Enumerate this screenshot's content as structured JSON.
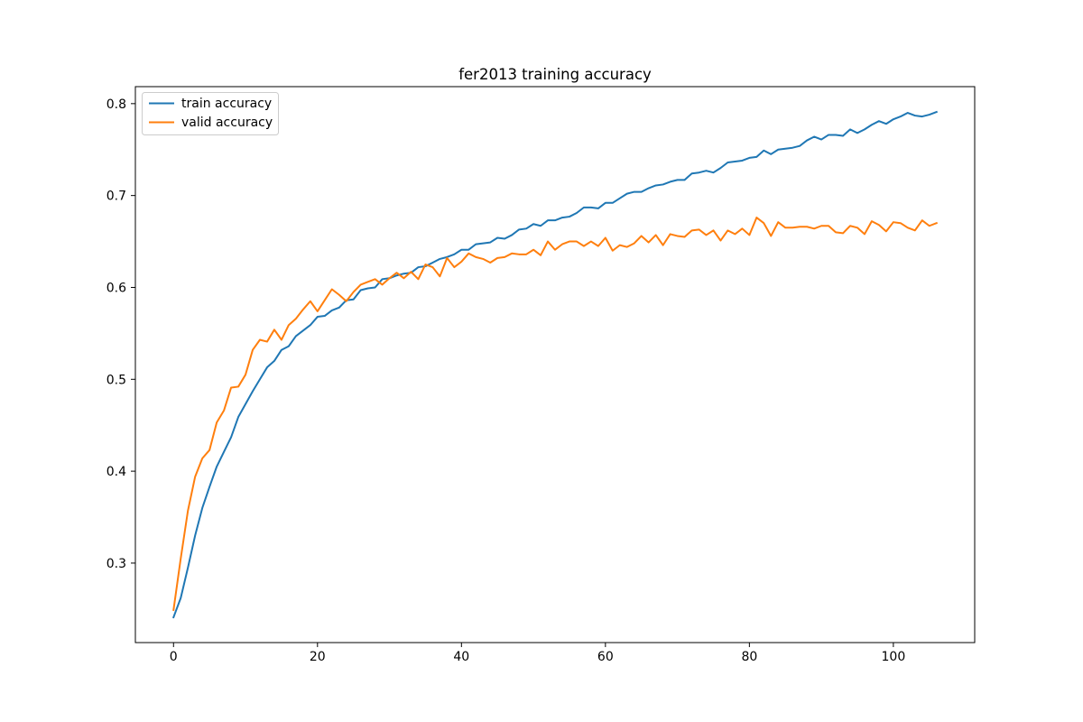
{
  "chart_data": {
    "type": "line",
    "title": "fer2013 training accuracy",
    "xlabel": "",
    "ylabel": "",
    "xlim": [
      -5.3,
      111.3
    ],
    "ylim": [
      0.2135,
      0.8185
    ],
    "xticks": [
      0,
      20,
      40,
      60,
      80,
      100
    ],
    "yticks": [
      0.3,
      0.4,
      0.5,
      0.6,
      0.7,
      0.8
    ],
    "xtick_labels": [
      "0",
      "20",
      "40",
      "60",
      "80",
      "100"
    ],
    "ytick_labels": [
      "0.3",
      "0.4",
      "0.5",
      "0.6",
      "0.7",
      "0.8"
    ],
    "grid": false,
    "legend_position": "upper-left",
    "x_start": 0,
    "x_step": 1,
    "series": [
      {
        "name": "train accuracy",
        "color": "#1f77b4",
        "values": [
          0.241,
          0.262,
          0.295,
          0.33,
          0.36,
          0.383,
          0.405,
          0.421,
          0.437,
          0.459,
          0.473,
          0.487,
          0.5,
          0.513,
          0.52,
          0.532,
          0.536,
          0.547,
          0.553,
          0.559,
          0.568,
          0.569,
          0.575,
          0.578,
          0.586,
          0.587,
          0.597,
          0.599,
          0.6,
          0.609,
          0.61,
          0.613,
          0.615,
          0.616,
          0.622,
          0.623,
          0.627,
          0.631,
          0.633,
          0.636,
          0.641,
          0.641,
          0.647,
          0.648,
          0.649,
          0.654,
          0.653,
          0.657,
          0.663,
          0.664,
          0.669,
          0.667,
          0.673,
          0.673,
          0.676,
          0.677,
          0.681,
          0.687,
          0.687,
          0.686,
          0.692,
          0.692,
          0.697,
          0.702,
          0.704,
          0.704,
          0.708,
          0.711,
          0.712,
          0.715,
          0.717,
          0.717,
          0.724,
          0.725,
          0.727,
          0.725,
          0.73,
          0.736,
          0.737,
          0.738,
          0.741,
          0.742,
          0.749,
          0.745,
          0.75,
          0.751,
          0.752,
          0.754,
          0.76,
          0.764,
          0.761,
          0.766,
          0.766,
          0.765,
          0.772,
          0.768,
          0.772,
          0.777,
          0.781,
          0.778,
          0.783,
          0.786,
          0.79,
          0.787,
          0.786,
          0.788,
          0.791
        ]
      },
      {
        "name": "valid accuracy",
        "color": "#ff7f0e",
        "values": [
          0.249,
          0.305,
          0.357,
          0.394,
          0.414,
          0.423,
          0.453,
          0.466,
          0.491,
          0.492,
          0.505,
          0.532,
          0.543,
          0.541,
          0.554,
          0.543,
          0.559,
          0.566,
          0.576,
          0.585,
          0.574,
          0.586,
          0.598,
          0.592,
          0.585,
          0.595,
          0.603,
          0.606,
          0.609,
          0.603,
          0.61,
          0.616,
          0.61,
          0.617,
          0.609,
          0.625,
          0.622,
          0.612,
          0.632,
          0.622,
          0.628,
          0.637,
          0.633,
          0.631,
          0.627,
          0.632,
          0.633,
          0.637,
          0.636,
          0.636,
          0.641,
          0.635,
          0.65,
          0.641,
          0.647,
          0.65,
          0.65,
          0.645,
          0.65,
          0.645,
          0.654,
          0.64,
          0.646,
          0.644,
          0.648,
          0.656,
          0.649,
          0.657,
          0.646,
          0.658,
          0.656,
          0.655,
          0.662,
          0.663,
          0.657,
          0.662,
          0.651,
          0.662,
          0.658,
          0.664,
          0.657,
          0.676,
          0.67,
          0.656,
          0.671,
          0.665,
          0.665,
          0.666,
          0.666,
          0.664,
          0.667,
          0.667,
          0.66,
          0.659,
          0.667,
          0.665,
          0.658,
          0.672,
          0.668,
          0.661,
          0.671,
          0.67,
          0.665,
          0.662,
          0.673,
          0.667,
          0.67
        ]
      }
    ]
  }
}
